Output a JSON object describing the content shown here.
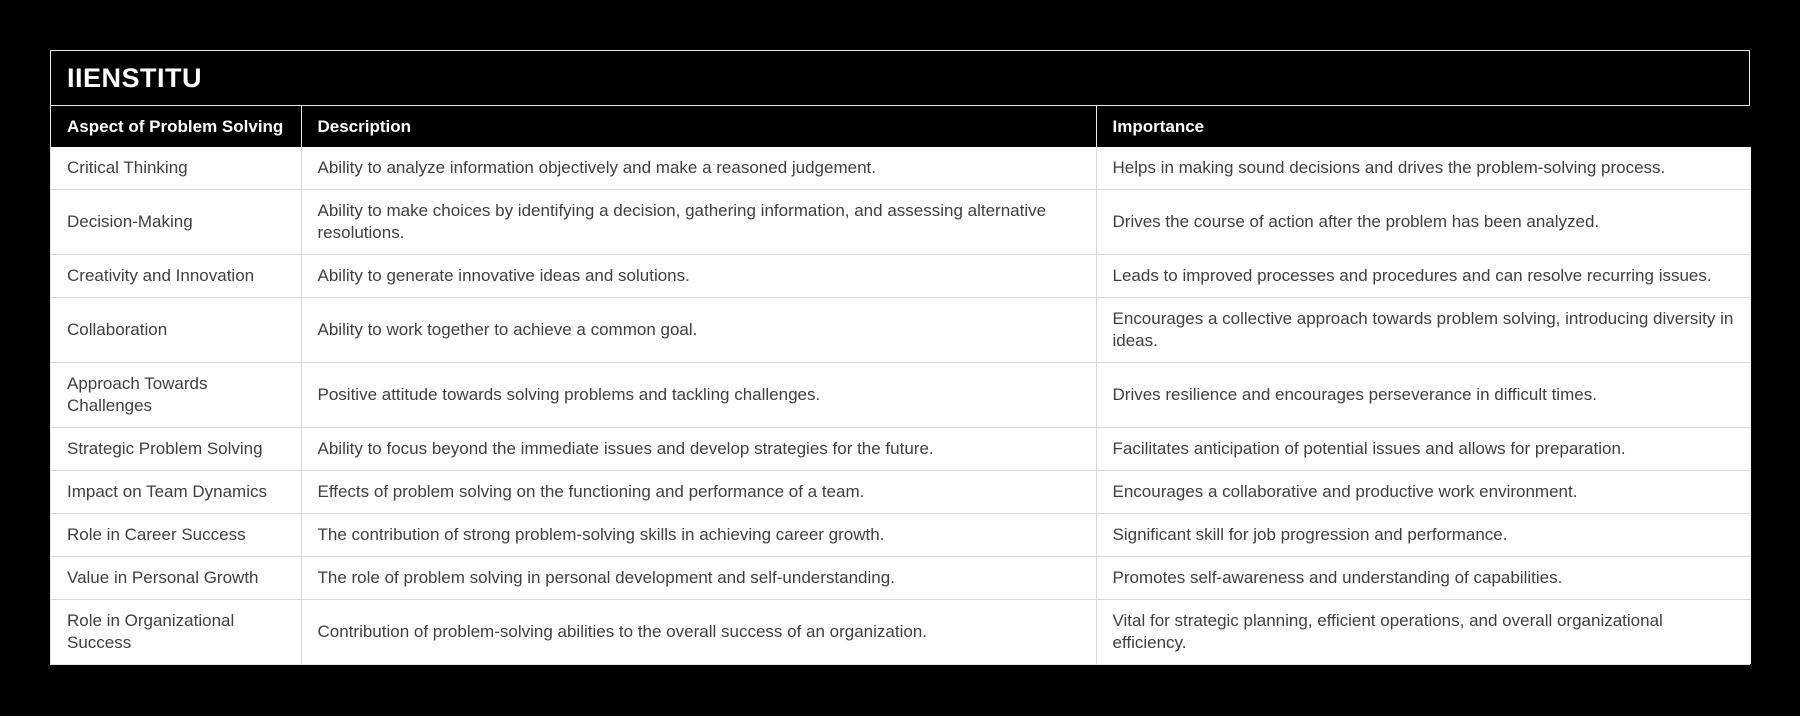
{
  "title_bar": {
    "brand": "IIENSTITU"
  },
  "table": {
    "columns": [
      {
        "key": "aspect",
        "label": "Aspect of Problem Solving"
      },
      {
        "key": "description",
        "label": "Description"
      },
      {
        "key": "importance",
        "label": "Importance"
      }
    ],
    "rows": [
      {
        "aspect": "Critical Thinking",
        "description": "Ability to analyze information objectively and make a reasoned judgement.",
        "importance": "Helps in making sound decisions and drives the problem-solving process."
      },
      {
        "aspect": "Decision-Making",
        "description": "Ability to make choices by identifying a decision, gathering information, and assessing alternative resolutions.",
        "importance": "Drives the course of action after the problem has been analyzed."
      },
      {
        "aspect": "Creativity and Innovation",
        "description": "Ability to generate innovative ideas and solutions.",
        "importance": "Leads to improved processes and procedures and can resolve recurring issues."
      },
      {
        "aspect": "Collaboration",
        "description": "Ability to work together to achieve a common goal.",
        "importance": "Encourages a collective approach towards problem solving, introducing diversity in ideas."
      },
      {
        "aspect": "Approach Towards Challenges",
        "description": "Positive attitude towards solving problems and tackling challenges.",
        "importance": "Drives resilience and encourages perseverance in difficult times."
      },
      {
        "aspect": "Strategic Problem Solving",
        "description": "Ability to focus beyond the immediate issues and develop strategies for the future.",
        "importance": "Facilitates anticipation of potential issues and allows for preparation."
      },
      {
        "aspect": "Impact on Team Dynamics",
        "description": "Effects of problem solving on the functioning and performance of a team.",
        "importance": "Encourages a collaborative and productive work environment."
      },
      {
        "aspect": "Role in Career Success",
        "description": "The contribution of strong problem-solving skills in achieving career growth.",
        "importance": "Significant skill for job progression and performance."
      },
      {
        "aspect": "Value in Personal Growth",
        "description": "The role of problem solving in personal development and self-understanding.",
        "importance": "Promotes self-awareness and understanding of capabilities."
      },
      {
        "aspect": "Role in Organizational Success",
        "description": "Contribution of problem-solving abilities to the overall success of an organization.",
        "importance": "Vital for strategic planning, efficient operations, and overall organizational efficiency."
      }
    ]
  },
  "colors": {
    "page_background": "#000000",
    "panel_background": "#000000",
    "header_text": "#ffffff",
    "body_background": "#ffffff",
    "body_text": "#3f3f3f",
    "grid_line": "#d9d9d9",
    "frame_line": "#e9e9e9"
  }
}
